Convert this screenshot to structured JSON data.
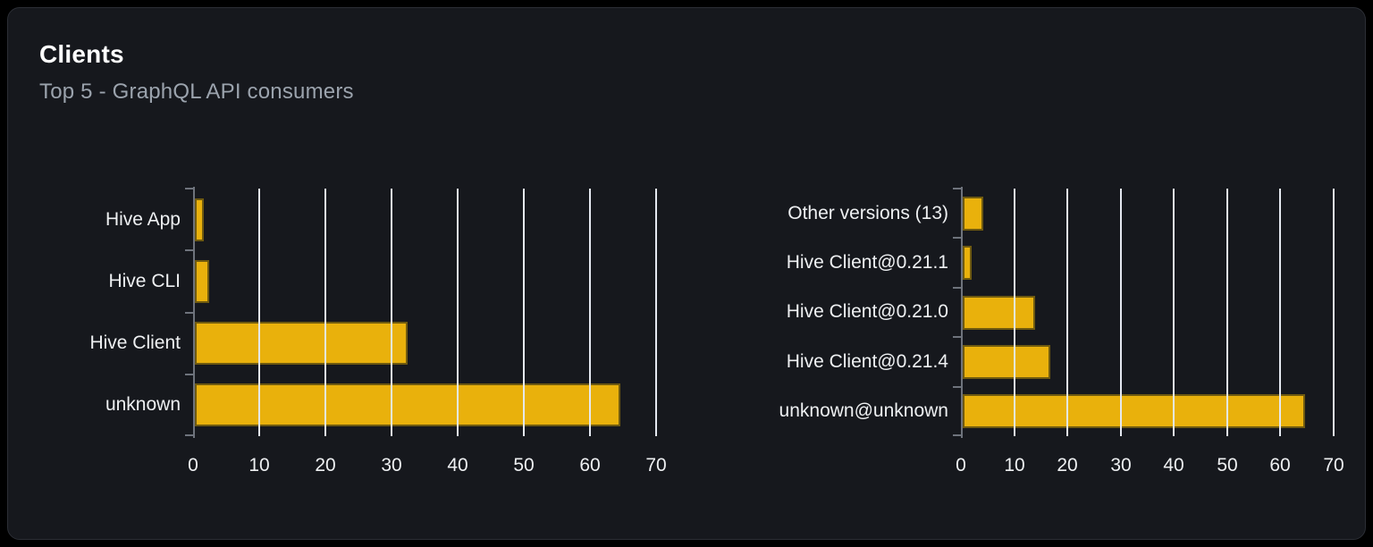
{
  "header": {
    "title": "Clients",
    "subtitle": "Top 5 - GraphQL API consumers"
  },
  "colors": {
    "page_bg": "#000000",
    "card_bg": "#16181d",
    "card_border": "#2b2e35",
    "title_text": "#ffffff",
    "subtitle_text": "#9ba3ad",
    "label_text": "#eef0f2",
    "bar_fill": "#e9b10c",
    "bar_border": "#6f5a10",
    "grid_line": "#e4e8f0",
    "axis_line": "#6e737c"
  },
  "chart_data": [
    {
      "type": "bar",
      "orientation": "horizontal",
      "name": "clients-by-name",
      "categories": [
        "Hive App",
        "Hive CLI",
        "Hive Client",
        "unknown"
      ],
      "values": [
        1.4,
        2.1,
        32.1,
        64.3
      ],
      "x_ticks": [
        0,
        10,
        20,
        30,
        40,
        50,
        60,
        70
      ],
      "xlim": [
        0,
        71.5
      ],
      "grid": true,
      "gridlines_over_bars": true,
      "legend": "none",
      "xlabel": "",
      "ylabel": ""
    },
    {
      "type": "bar",
      "orientation": "horizontal",
      "name": "clients-by-version",
      "categories": [
        "Other versions (13)",
        "Hive Client@0.21.1",
        "Hive Client@0.21.0",
        "Hive Client@0.21.4",
        "unknown@unknown"
      ],
      "values": [
        3.8,
        1.6,
        13.6,
        16.4,
        64.4
      ],
      "x_ticks": [
        0,
        10,
        20,
        30,
        40,
        50,
        60,
        70
      ],
      "xlim": [
        0,
        72
      ],
      "grid": true,
      "gridlines_over_bars": true,
      "legend": "none",
      "xlabel": "",
      "ylabel": ""
    }
  ]
}
